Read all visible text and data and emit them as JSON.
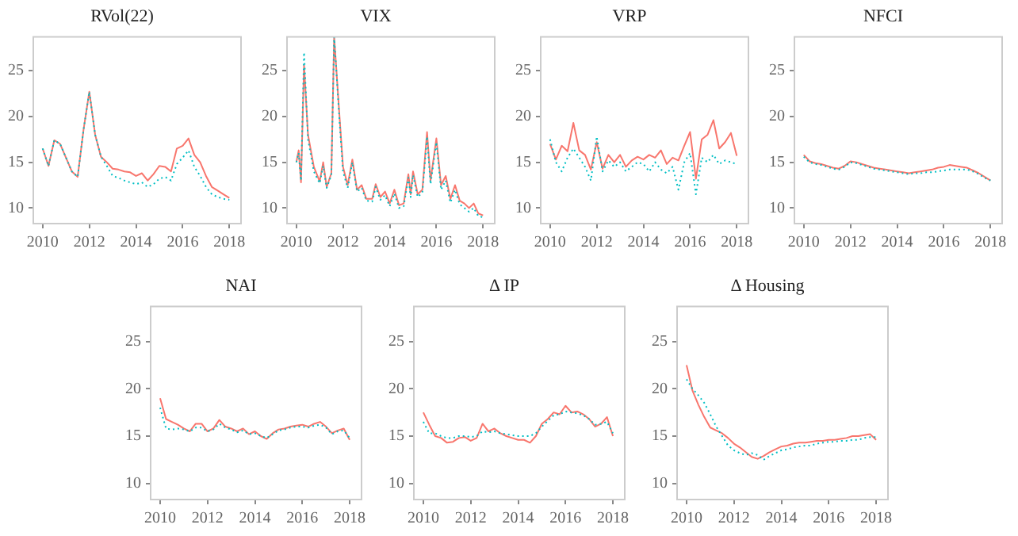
{
  "chart_data": [
    {
      "type": "line",
      "title": "RVol(22)",
      "x": [
        2010,
        2010.25,
        2010.5,
        2010.75,
        2011,
        2011.25,
        2011.5,
        2011.75,
        2012,
        2012.25,
        2012.5,
        2012.75,
        2013,
        2013.25,
        2013.5,
        2013.75,
        2014,
        2014.25,
        2014.5,
        2014.75,
        2015,
        2015.25,
        2015.5,
        2015.75,
        2016,
        2016.25,
        2016.5,
        2016.75,
        2017,
        2017.25,
        2017.5,
        2017.75,
        2018
      ],
      "xlim": [
        2009.6,
        2018.5
      ],
      "xticks": [
        2010,
        2012,
        2014,
        2016,
        2018
      ],
      "ylim": [
        8.3,
        28.7
      ],
      "yticks": [
        10,
        15,
        20,
        25
      ],
      "series": [
        {
          "color": "#00bfc4",
          "line_style": "dotted",
          "values": [
            16.5,
            14.6,
            17.4,
            17.0,
            15.5,
            14.0,
            13.4,
            18.5,
            22.7,
            18.0,
            15.6,
            14.6,
            13.5,
            13.3,
            13.0,
            12.8,
            12.6,
            12.8,
            12.3,
            12.6,
            13.2,
            13.4,
            13.0,
            14.8,
            15.5,
            16.3,
            14.5,
            13.5,
            12.3,
            11.5,
            11.2,
            11.0,
            10.9
          ]
        },
        {
          "color": "#f8766d",
          "line_style": "solid",
          "values": [
            16.5,
            14.6,
            17.4,
            17.0,
            15.5,
            14.0,
            13.4,
            18.5,
            22.7,
            18.0,
            15.6,
            15.0,
            14.3,
            14.2,
            14.0,
            13.9,
            13.5,
            13.8,
            13.0,
            13.7,
            14.6,
            14.5,
            14.0,
            16.5,
            16.8,
            17.6,
            15.8,
            15.0,
            13.5,
            12.3,
            11.9,
            11.5,
            11.1
          ]
        }
      ]
    },
    {
      "type": "line",
      "title": "VIX",
      "x": [
        2010,
        2010.1,
        2010.2,
        2010.33,
        2010.5,
        2010.75,
        2011,
        2011.15,
        2011.3,
        2011.5,
        2011.62,
        2011.85,
        2012,
        2012.2,
        2012.4,
        2012.6,
        2012.8,
        2013,
        2013.25,
        2013.4,
        2013.6,
        2013.8,
        2014,
        2014.2,
        2014.4,
        2014.6,
        2014.8,
        2014.9,
        2015,
        2015.2,
        2015.4,
        2015.6,
        2015.75,
        2016,
        2016.2,
        2016.4,
        2016.6,
        2016.8,
        2017,
        2017.2,
        2017.4,
        2017.6,
        2017.8,
        2018
      ],
      "xlim": [
        2009.6,
        2018.5
      ],
      "xticks": [
        2010,
        2012,
        2014,
        2016,
        2018
      ],
      "ylim": [
        8.3,
        28.7
      ],
      "yticks": [
        10,
        15,
        20,
        25
      ],
      "series": [
        {
          "color": "#00bfc4",
          "line_style": "dotted",
          "values": [
            15,
            16,
            13,
            27,
            17.5,
            14,
            12.7,
            14.6,
            12.2,
            13.6,
            28.7,
            19.5,
            14,
            12.2,
            15,
            11.8,
            12.2,
            10.8,
            10.7,
            12.3,
            10.9,
            11.4,
            10.2,
            11.6,
            10.0,
            10.2,
            13.3,
            11.2,
            13.6,
            11.2,
            11.7,
            17.8,
            12.6,
            17.2,
            12.0,
            13.0,
            10.6,
            12.0,
            10.4,
            10.0,
            9.6,
            10.0,
            9.1,
            9.0
          ]
        },
        {
          "color": "#f8766d",
          "line_style": "solid",
          "values": [
            15,
            16.3,
            12.8,
            25.6,
            18,
            14.5,
            12.9,
            15.0,
            12.3,
            13.8,
            28.7,
            20,
            14.5,
            12.5,
            15.3,
            12.0,
            12.5,
            11.0,
            11.0,
            12.6,
            11.2,
            11.8,
            10.5,
            12.0,
            10.3,
            10.5,
            13.7,
            11.5,
            14.0,
            11.5,
            12.0,
            18.3,
            13.0,
            17.6,
            12.5,
            13.5,
            11.0,
            12.5,
            10.8,
            10.5,
            10.0,
            10.5,
            9.4,
            9.2
          ]
        }
      ]
    },
    {
      "type": "line",
      "title": "VRP",
      "x": [
        2010,
        2010.25,
        2010.5,
        2010.75,
        2011,
        2011.25,
        2011.5,
        2011.75,
        2012,
        2012.25,
        2012.5,
        2012.75,
        2013,
        2013.25,
        2013.5,
        2013.75,
        2014,
        2014.25,
        2014.5,
        2014.75,
        2015,
        2015.25,
        2015.5,
        2015.75,
        2016,
        2016.25,
        2016.5,
        2016.75,
        2017,
        2017.25,
        2017.5,
        2017.75,
        2018
      ],
      "xlim": [
        2009.6,
        2018.5
      ],
      "xticks": [
        2010,
        2012,
        2014,
        2016,
        2018
      ],
      "ylim": [
        8.3,
        28.7
      ],
      "yticks": [
        10,
        15,
        20,
        25
      ],
      "series": [
        {
          "color": "#00bfc4",
          "line_style": "dotted",
          "values": [
            17.5,
            15,
            14.0,
            15.5,
            16.5,
            15.5,
            14.5,
            13.0,
            17.8,
            14.0,
            15.2,
            14.5,
            15.0,
            14.0,
            14.5,
            15.0,
            14.8,
            14.0,
            15.0,
            14.2,
            13.8,
            14.5,
            12.0,
            15.0,
            16.0,
            11.5,
            15.5,
            15.0,
            15.8,
            14.8,
            15.2,
            15.0,
            14.8
          ]
        },
        {
          "color": "#f8766d",
          "line_style": "solid",
          "values": [
            17,
            15.3,
            16.8,
            16.2,
            19.3,
            16.3,
            15.8,
            14.2,
            17.2,
            14.3,
            15.8,
            15.0,
            15.8,
            14.5,
            15.2,
            15.6,
            15.3,
            15.8,
            15.5,
            16.3,
            14.8,
            15.5,
            15.2,
            16.8,
            18.3,
            13.2,
            17.5,
            18.0,
            19.6,
            16.5,
            17.2,
            18.2,
            15.7
          ]
        }
      ]
    },
    {
      "type": "line",
      "title": "NFCI",
      "x": [
        2010,
        2010.25,
        2010.5,
        2010.75,
        2011,
        2011.25,
        2011.5,
        2011.75,
        2012,
        2012.25,
        2012.5,
        2012.75,
        2013,
        2013.25,
        2013.5,
        2013.75,
        2014,
        2014.25,
        2014.5,
        2014.75,
        2015,
        2015.25,
        2015.5,
        2015.75,
        2016,
        2016.25,
        2016.5,
        2016.75,
        2017,
        2017.25,
        2017.5,
        2017.75,
        2018
      ],
      "xlim": [
        2009.6,
        2018.5
      ],
      "xticks": [
        2010,
        2012,
        2014,
        2016,
        2018
      ],
      "ylim": [
        8.3,
        28.7
      ],
      "yticks": [
        10,
        15,
        20,
        25
      ],
      "series": [
        {
          "color": "#00bfc4",
          "line_style": "dotted",
          "values": [
            15.6,
            15.0,
            14.8,
            14.7,
            14.5,
            14.3,
            14.2,
            14.5,
            15.0,
            14.9,
            14.7,
            14.5,
            14.3,
            14.2,
            14.1,
            14.0,
            13.9,
            13.8,
            13.7,
            13.8,
            13.8,
            13.9,
            13.9,
            14.0,
            14.1,
            14.2,
            14.2,
            14.2,
            14.2,
            14.0,
            13.7,
            13.3,
            13.0
          ]
        },
        {
          "color": "#f8766d",
          "line_style": "solid",
          "values": [
            15.8,
            15.1,
            14.9,
            14.8,
            14.6,
            14.4,
            14.3,
            14.6,
            15.1,
            15.0,
            14.8,
            14.6,
            14.4,
            14.3,
            14.2,
            14.1,
            14.0,
            13.9,
            13.8,
            13.9,
            14.0,
            14.1,
            14.2,
            14.4,
            14.5,
            14.7,
            14.6,
            14.5,
            14.4,
            14.1,
            13.8,
            13.4,
            13.0
          ]
        }
      ]
    },
    {
      "type": "line",
      "title": "NAI",
      "x": [
        2010,
        2010.25,
        2010.5,
        2010.75,
        2011,
        2011.25,
        2011.5,
        2011.75,
        2012,
        2012.25,
        2012.5,
        2012.75,
        2013,
        2013.25,
        2013.5,
        2013.75,
        2014,
        2014.25,
        2014.5,
        2014.75,
        2015,
        2015.25,
        2015.5,
        2015.75,
        2016,
        2016.25,
        2016.5,
        2016.75,
        2017,
        2017.25,
        2017.5,
        2017.75,
        2018
      ],
      "xlim": [
        2009.6,
        2018.5
      ],
      "xticks": [
        2010,
        2012,
        2014,
        2016,
        2018
      ],
      "ylim": [
        8.3,
        28.7
      ],
      "yticks": [
        10,
        15,
        20,
        25
      ],
      "series": [
        {
          "color": "#00bfc4",
          "line_style": "dotted",
          "values": [
            18,
            15.8,
            15.7,
            15.8,
            15.7,
            15.5,
            15.9,
            15.9,
            15.5,
            15.7,
            16.3,
            15.9,
            15.7,
            15.4,
            15.6,
            15.2,
            15.3,
            15.0,
            14.8,
            15.2,
            15.6,
            15.7,
            15.9,
            16.0,
            16.0,
            15.9,
            16.1,
            16.2,
            15.9,
            15.2,
            15.5,
            15.6,
            14.8
          ]
        },
        {
          "color": "#f8766d",
          "line_style": "solid",
          "values": [
            19,
            16.8,
            16.5,
            16.2,
            15.8,
            15.5,
            16.3,
            16.3,
            15.5,
            15.8,
            16.7,
            16.0,
            15.8,
            15.5,
            15.8,
            15.2,
            15.5,
            15.0,
            14.7,
            15.3,
            15.7,
            15.8,
            16.0,
            16.1,
            16.2,
            16.0,
            16.3,
            16.5,
            16.0,
            15.3,
            15.6,
            15.8,
            14.6
          ]
        }
      ]
    },
    {
      "type": "line",
      "title": "Δ IP",
      "x": [
        2010,
        2010.25,
        2010.5,
        2010.75,
        2011,
        2011.25,
        2011.5,
        2011.75,
        2012,
        2012.25,
        2012.5,
        2012.75,
        2013,
        2013.25,
        2013.5,
        2013.75,
        2014,
        2014.25,
        2014.5,
        2014.75,
        2015,
        2015.25,
        2015.5,
        2015.75,
        2016,
        2016.25,
        2016.5,
        2016.75,
        2017,
        2017.25,
        2017.5,
        2017.75,
        2018
      ],
      "xlim": [
        2009.6,
        2018.5
      ],
      "xticks": [
        2010,
        2012,
        2014,
        2016,
        2018
      ],
      "ylim": [
        8.3,
        28.7
      ],
      "yticks": [
        10,
        15,
        20,
        25
      ],
      "series": [
        {
          "color": "#00bfc4",
          "line_style": "dotted",
          "values": [
            16.5,
            15.3,
            15.3,
            15.0,
            14.8,
            14.8,
            15.0,
            15.0,
            14.9,
            15.0,
            15.5,
            15.4,
            15.5,
            15.3,
            15.2,
            15.1,
            15.0,
            15.0,
            15.0,
            15.3,
            16.0,
            16.6,
            17.2,
            17.3,
            17.6,
            17.5,
            17.4,
            17.2,
            16.8,
            16.2,
            16.3,
            16.5,
            15.3
          ]
        },
        {
          "color": "#f8766d",
          "line_style": "solid",
          "values": [
            17.5,
            16.2,
            15.0,
            14.8,
            14.3,
            14.4,
            14.8,
            14.9,
            14.5,
            14.8,
            16.3,
            15.5,
            15.8,
            15.3,
            15.0,
            14.8,
            14.6,
            14.6,
            14.3,
            15.0,
            16.3,
            16.8,
            17.5,
            17.3,
            18.2,
            17.5,
            17.6,
            17.3,
            16.8,
            16.0,
            16.3,
            17.0,
            15.0
          ]
        }
      ]
    },
    {
      "type": "line",
      "title": "Δ Housing",
      "x": [
        2010,
        2010.25,
        2010.5,
        2010.75,
        2011,
        2011.25,
        2011.5,
        2011.75,
        2012,
        2012.25,
        2012.5,
        2012.75,
        2013,
        2013.25,
        2013.5,
        2013.75,
        2014,
        2014.25,
        2014.5,
        2014.75,
        2015,
        2015.25,
        2015.5,
        2015.75,
        2016,
        2016.25,
        2016.5,
        2016.75,
        2017,
        2017.25,
        2017.5,
        2017.75,
        2018
      ],
      "xlim": [
        2009.6,
        2018.5
      ],
      "xticks": [
        2010,
        2012,
        2014,
        2016,
        2018
      ],
      "ylim": [
        8.3,
        28.7
      ],
      "yticks": [
        10,
        15,
        20,
        25
      ],
      "series": [
        {
          "color": "#00bfc4",
          "line_style": "dotted",
          "values": [
            21,
            20,
            19.3,
            18.5,
            17.3,
            16.0,
            15.0,
            14.0,
            13.5,
            13.2,
            13.0,
            13.2,
            13.0,
            12.5,
            12.9,
            13.2,
            13.5,
            13.6,
            13.8,
            13.9,
            14.0,
            14.0,
            14.2,
            14.3,
            14.4,
            14.4,
            14.5,
            14.5,
            14.6,
            14.6,
            14.8,
            14.9,
            14.9
          ]
        },
        {
          "color": "#f8766d",
          "line_style": "solid",
          "values": [
            22.5,
            19.8,
            18.3,
            17.0,
            15.9,
            15.6,
            15.3,
            14.8,
            14.2,
            13.8,
            13.3,
            12.8,
            12.6,
            12.9,
            13.3,
            13.6,
            13.9,
            14.0,
            14.2,
            14.3,
            14.3,
            14.4,
            14.5,
            14.5,
            14.6,
            14.6,
            14.7,
            14.8,
            15.0,
            15.0,
            15.1,
            15.2,
            14.6
          ]
        }
      ]
    }
  ]
}
